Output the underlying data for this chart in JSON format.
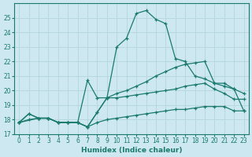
{
  "xlabel": "Humidex (Indice chaleur)",
  "bg_color": "#cde8f0",
  "line_color": "#1a7a6e",
  "grid_color": "#b8d8e0",
  "xlim": [
    -0.5,
    23.5
  ],
  "ylim": [
    17,
    26
  ],
  "xticks": [
    0,
    1,
    2,
    3,
    4,
    5,
    6,
    7,
    8,
    9,
    10,
    11,
    12,
    13,
    14,
    15,
    16,
    17,
    18,
    19,
    20,
    21,
    22,
    23
  ],
  "yticks": [
    17,
    18,
    19,
    20,
    21,
    22,
    23,
    24,
    25
  ],
  "line1_x": [
    0,
    1,
    2,
    3,
    4,
    5,
    6,
    7,
    8,
    9,
    10,
    11,
    12,
    13,
    14,
    15,
    16,
    17,
    18,
    19,
    20,
    21,
    22,
    23
  ],
  "line1_y": [
    17.8,
    18.0,
    18.1,
    18.1,
    17.8,
    17.8,
    17.8,
    17.5,
    17.8,
    18.0,
    18.1,
    18.2,
    18.3,
    18.4,
    18.5,
    18.6,
    18.7,
    18.7,
    18.8,
    18.9,
    18.9,
    18.9,
    18.6,
    18.6
  ],
  "line2_x": [
    0,
    1,
    2,
    3,
    4,
    5,
    6,
    7,
    8,
    9,
    10,
    11,
    12,
    13,
    14,
    15,
    16,
    17,
    18,
    19,
    20,
    21,
    22,
    23
  ],
  "line2_y": [
    17.8,
    18.4,
    18.1,
    18.1,
    17.8,
    17.8,
    17.8,
    17.5,
    18.5,
    19.5,
    19.5,
    19.6,
    19.7,
    19.8,
    19.9,
    20.0,
    20.1,
    20.3,
    20.4,
    20.5,
    20.1,
    19.8,
    19.4,
    19.4
  ],
  "line3_x": [
    0,
    1,
    2,
    3,
    4,
    5,
    6,
    7,
    8,
    9,
    10,
    11,
    12,
    13,
    14,
    15,
    16,
    17,
    18,
    19,
    20,
    21,
    22,
    23
  ],
  "line3_y": [
    17.8,
    18.4,
    18.1,
    18.1,
    17.8,
    17.8,
    17.8,
    17.5,
    18.5,
    19.5,
    19.8,
    20.0,
    20.3,
    20.6,
    21.0,
    21.3,
    21.6,
    21.8,
    21.9,
    22.0,
    20.5,
    20.3,
    20.1,
    19.8
  ],
  "line4_x": [
    0,
    2,
    3,
    4,
    5,
    6,
    7,
    8,
    9,
    10,
    11,
    12,
    13,
    14,
    15,
    16,
    17,
    18,
    19,
    20,
    21,
    22,
    23
  ],
  "line4_y": [
    17.8,
    18.1,
    18.1,
    17.8,
    17.8,
    17.8,
    20.7,
    19.5,
    19.5,
    23.0,
    23.6,
    25.3,
    25.5,
    24.9,
    24.6,
    22.2,
    22.0,
    21.0,
    20.8,
    20.5,
    20.5,
    20.1,
    18.6
  ]
}
